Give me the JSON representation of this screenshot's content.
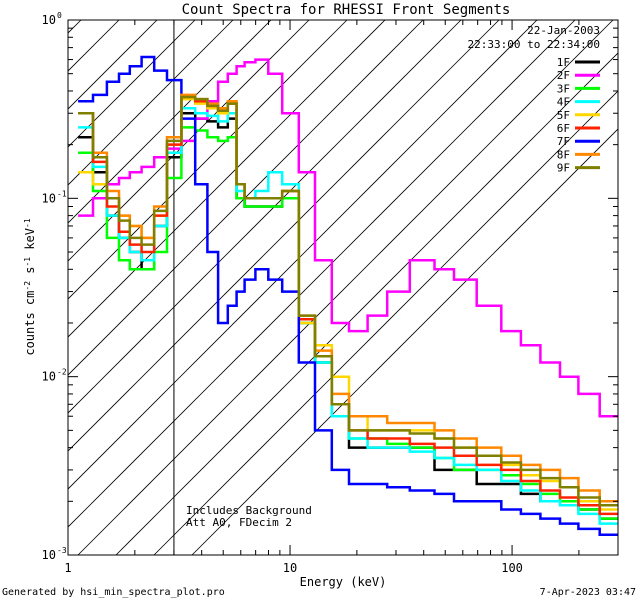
{
  "chart_data": {
    "type": "line",
    "title": "Count Spectra for RHESSI Front Segments",
    "xlabel": "Energy (keV)",
    "ylabel_parts": [
      "counts cm",
      "-2",
      " s",
      "-1",
      " keV",
      "-1"
    ],
    "x_scale": "log",
    "y_scale": "log",
    "xlim": [
      1,
      300
    ],
    "ylim": [
      0.001,
      1
    ],
    "x_ticks": [
      {
        "value": 1,
        "label": "1"
      },
      {
        "value": 10,
        "label": "10"
      },
      {
        "value": 100,
        "label": "100"
      }
    ],
    "y_ticks": [
      {
        "value": 1,
        "base": "10",
        "exp": "0"
      },
      {
        "value": 0.1,
        "base": "10",
        "exp": "-1"
      },
      {
        "value": 0.01,
        "base": "10",
        "exp": "-2"
      },
      {
        "value": 0.001,
        "base": "10",
        "exp": "-3"
      }
    ],
    "date": "22-Jan-2003",
    "time_range": "22:33:00 to 22:34:00",
    "note_lines": [
      "Includes Background",
      "Att A0, FDecim 2"
    ],
    "shaded_region_kev": [
      1,
      3
    ],
    "series": [
      {
        "name": "1F",
        "color": "#000000",
        "values": [
          0.22,
          0.14,
          0.08,
          0.06,
          0.05,
          0.04,
          0.07,
          0.17,
          0.3,
          0.28,
          0.27,
          0.25,
          0.28,
          0.1,
          0.09,
          0.09,
          0.09,
          0.1,
          0.02,
          0.012,
          0.006,
          0.004,
          0.004,
          0.004,
          0.004,
          0.003,
          0.003,
          0.0025,
          0.0025,
          0.0022,
          0.002,
          0.002,
          0.0018,
          0.0016
        ]
      },
      {
        "name": "2F",
        "color": "#ff00ff",
        "values": [
          0.08,
          0.1,
          0.12,
          0.13,
          0.14,
          0.15,
          0.17,
          0.19,
          0.21,
          0.28,
          0.35,
          0.45,
          0.5,
          0.55,
          0.58,
          0.6,
          0.5,
          0.3,
          0.14,
          0.045,
          0.02,
          0.018,
          0.022,
          0.03,
          0.045,
          0.04,
          0.035,
          0.025,
          0.018,
          0.015,
          0.012,
          0.01,
          0.008,
          0.006
        ]
      },
      {
        "name": "3F",
        "color": "#00ff00",
        "values": [
          0.18,
          0.11,
          0.06,
          0.045,
          0.04,
          0.04,
          0.05,
          0.13,
          0.25,
          0.24,
          0.22,
          0.21,
          0.22,
          0.1,
          0.09,
          0.09,
          0.09,
          0.1,
          0.02,
          0.012,
          0.006,
          0.0045,
          0.0045,
          0.0042,
          0.004,
          0.0035,
          0.003,
          0.003,
          0.0028,
          0.0025,
          0.0022,
          0.002,
          0.0018,
          0.0016
        ]
      },
      {
        "name": "4F",
        "color": "#00ffff",
        "values": [
          0.25,
          0.15,
          0.08,
          0.06,
          0.05,
          0.045,
          0.07,
          0.18,
          0.32,
          0.3,
          0.29,
          0.27,
          0.3,
          0.11,
          0.1,
          0.11,
          0.14,
          0.12,
          0.02,
          0.012,
          0.006,
          0.0045,
          0.004,
          0.004,
          0.0038,
          0.0035,
          0.0032,
          0.003,
          0.0026,
          0.0023,
          0.002,
          0.0019,
          0.0017,
          0.0015
        ]
      },
      {
        "name": "5F",
        "color": "#ffd700",
        "values": [
          0.14,
          0.12,
          0.1,
          0.08,
          0.07,
          0.06,
          0.08,
          0.2,
          0.36,
          0.34,
          0.32,
          0.3,
          0.34,
          0.12,
          0.1,
          0.1,
          0.1,
          0.11,
          0.02,
          0.015,
          0.01,
          0.006,
          0.005,
          0.005,
          0.005,
          0.0045,
          0.004,
          0.0036,
          0.0032,
          0.0028,
          0.0026,
          0.0024,
          0.002,
          0.0018
        ]
      },
      {
        "name": "6F",
        "color": "#ff2200",
        "values": [
          0.3,
          0.16,
          0.09,
          0.065,
          0.055,
          0.05,
          0.08,
          0.2,
          0.37,
          0.35,
          0.33,
          0.31,
          0.34,
          0.12,
          0.1,
          0.1,
          0.1,
          0.11,
          0.021,
          0.013,
          0.007,
          0.005,
          0.0045,
          0.0045,
          0.0042,
          0.004,
          0.0036,
          0.0032,
          0.003,
          0.0026,
          0.0023,
          0.0021,
          0.0019,
          0.0017
        ]
      },
      {
        "name": "7F",
        "color": "#0000ff",
        "values": [
          0.35,
          0.38,
          0.45,
          0.5,
          0.55,
          0.62,
          0.52,
          0.46,
          0.28,
          0.12,
          0.05,
          0.02,
          0.025,
          0.03,
          0.035,
          0.04,
          0.035,
          0.03,
          0.012,
          0.005,
          0.003,
          0.0025,
          0.0025,
          0.0024,
          0.0023,
          0.0022,
          0.002,
          0.002,
          0.0018,
          0.0017,
          0.0016,
          0.0015,
          0.0014,
          0.0013
        ]
      },
      {
        "name": "8F",
        "color": "#ff8800",
        "values": [
          0.3,
          0.18,
          0.11,
          0.08,
          0.07,
          0.06,
          0.09,
          0.22,
          0.38,
          0.36,
          0.34,
          0.32,
          0.35,
          0.12,
          0.1,
          0.1,
          0.1,
          0.11,
          0.022,
          0.014,
          0.008,
          0.006,
          0.006,
          0.0055,
          0.0055,
          0.005,
          0.0045,
          0.004,
          0.0036,
          0.0032,
          0.003,
          0.0027,
          0.0023,
          0.002
        ]
      },
      {
        "name": "9F",
        "color": "#808000",
        "values": [
          0.3,
          0.17,
          0.1,
          0.075,
          0.06,
          0.055,
          0.085,
          0.21,
          0.37,
          0.36,
          0.33,
          0.31,
          0.34,
          0.12,
          0.1,
          0.1,
          0.1,
          0.11,
          0.022,
          0.013,
          0.007,
          0.005,
          0.005,
          0.005,
          0.0048,
          0.0045,
          0.004,
          0.0036,
          0.0033,
          0.003,
          0.0027,
          0.0024,
          0.0021,
          0.0019
        ]
      }
    ],
    "energy_kev": [
      1.2,
      1.4,
      1.6,
      1.8,
      2.0,
      2.3,
      2.6,
      3.0,
      3.5,
      4.0,
      4.5,
      5.0,
      5.5,
      6.0,
      6.5,
      7.5,
      8.5,
      10,
      12,
      14,
      17,
      20,
      25,
      30,
      40,
      50,
      60,
      80,
      100,
      120,
      150,
      180,
      220,
      280
    ]
  },
  "footer": {
    "generated_by": "Generated by hsi_min_spectra_plot.pro",
    "timestamp": "7-Apr-2023 03:47"
  }
}
